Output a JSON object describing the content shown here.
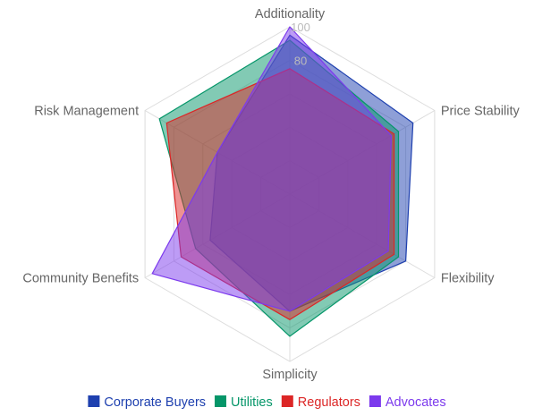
{
  "chart_data": {
    "type": "radar",
    "axes": [
      "Additionality",
      "Price Stability",
      "Flexibility",
      "Simplicity",
      "Community Benefits",
      "Risk Management"
    ],
    "r_range": [
      0,
      100
    ],
    "tick_labels": [
      "80",
      "100"
    ],
    "grid": true,
    "legend_position": "bottom",
    "series": [
      {
        "name": "Corporate Buyers",
        "color": "#1e40af",
        "values": [
          95,
          85,
          80,
          70,
          55,
          50
        ]
      },
      {
        "name": "Utilities",
        "color": "#059669",
        "values": [
          92,
          75,
          75,
          85,
          65,
          90
        ]
      },
      {
        "name": "Regulators",
        "color": "#dc2626",
        "values": [
          75,
          72,
          72,
          75,
          75,
          85
        ]
      },
      {
        "name": "Advocates",
        "color": "#7c3aed",
        "values": [
          100,
          70,
          68,
          70,
          95,
          50
        ]
      }
    ]
  }
}
